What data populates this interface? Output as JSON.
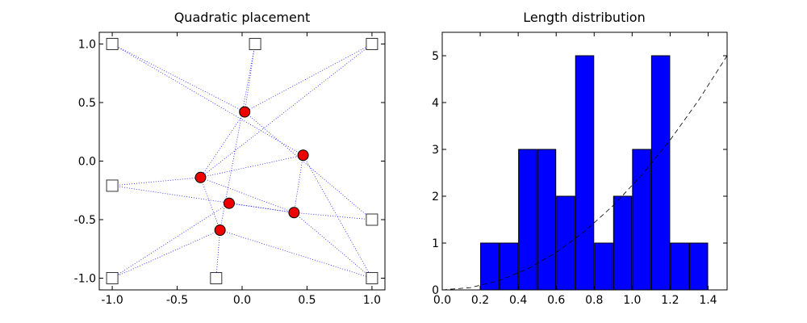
{
  "chart_data": [
    {
      "type": "scatter",
      "title": "Quadratic placement",
      "xlabel": "",
      "ylabel": "",
      "xlim": [
        -1.1,
        1.1
      ],
      "ylim": [
        -1.1,
        1.1
      ],
      "xticks": [
        "-1.0",
        "-0.5",
        "0.0",
        "0.5",
        "1.0"
      ],
      "yticks": [
        "-1.0",
        "-0.5",
        "0.0",
        "0.5",
        "1.0"
      ],
      "fixed_nodes": [
        [
          -1.0,
          1.0
        ],
        [
          0.1,
          1.0
        ],
        [
          1.0,
          1.0
        ],
        [
          -1.0,
          -0.21
        ],
        [
          1.0,
          -0.5
        ],
        [
          -1.0,
          -1.0
        ],
        [
          -0.2,
          -1.0
        ],
        [
          1.0,
          -1.0
        ]
      ],
      "movable_nodes": [
        [
          0.02,
          0.42
        ],
        [
          0.47,
          0.05
        ],
        [
          -0.32,
          -0.14
        ],
        [
          -0.1,
          -0.36
        ],
        [
          0.4,
          -0.44
        ],
        [
          -0.17,
          -0.59
        ]
      ],
      "edges": [
        [
          [
            -1.0,
            1.0
          ],
          [
            0.02,
            0.42
          ]
        ],
        [
          [
            -1.0,
            1.0
          ],
          [
            0.47,
            0.05
          ]
        ],
        [
          [
            0.1,
            1.0
          ],
          [
            0.02,
            0.42
          ]
        ],
        [
          [
            0.1,
            1.0
          ],
          [
            -0.17,
            -0.59
          ]
        ],
        [
          [
            1.0,
            1.0
          ],
          [
            0.02,
            0.42
          ]
        ],
        [
          [
            1.0,
            1.0
          ],
          [
            -0.32,
            -0.14
          ]
        ],
        [
          [
            0.02,
            0.42
          ],
          [
            -0.32,
            -0.14
          ]
        ],
        [
          [
            0.47,
            0.05
          ],
          [
            -0.32,
            -0.14
          ]
        ],
        [
          [
            0.47,
            0.05
          ],
          [
            0.4,
            -0.44
          ]
        ],
        [
          [
            0.47,
            0.05
          ],
          [
            1.0,
            -1.0
          ]
        ],
        [
          [
            -1.0,
            -0.21
          ],
          [
            -0.32,
            -0.14
          ]
        ],
        [
          [
            -1.0,
            -0.21
          ],
          [
            0.4,
            -0.44
          ]
        ],
        [
          [
            -0.32,
            -0.14
          ],
          [
            -0.17,
            -0.59
          ]
        ],
        [
          [
            -0.32,
            -0.14
          ],
          [
            0.4,
            -0.44
          ]
        ],
        [
          [
            -0.1,
            -0.36
          ],
          [
            0.4,
            -0.44
          ]
        ],
        [
          [
            -0.1,
            -0.36
          ],
          [
            -1.0,
            -1.0
          ]
        ],
        [
          [
            0.4,
            -0.44
          ],
          [
            1.0,
            -0.5
          ]
        ],
        [
          [
            0.4,
            -0.44
          ],
          [
            1.0,
            -1.0
          ]
        ],
        [
          [
            0.02,
            0.42
          ],
          [
            1.0,
            -0.5
          ]
        ],
        [
          [
            -0.17,
            -0.59
          ],
          [
            -1.0,
            -1.0
          ]
        ],
        [
          [
            -0.17,
            -0.59
          ],
          [
            -0.2,
            -1.0
          ]
        ],
        [
          [
            -0.17,
            -0.59
          ],
          [
            1.0,
            -1.0
          ]
        ]
      ],
      "fixed_color": "#ffffff",
      "movable_color": "#ee0000",
      "edge_color": "#2222ff"
    },
    {
      "type": "bar",
      "title": "Length distribution",
      "xlabel": "",
      "ylabel": "",
      "xlim": [
        0.0,
        1.5
      ],
      "ylim": [
        0,
        5.5
      ],
      "xticks": [
        "0.0",
        "0.2",
        "0.4",
        "0.6",
        "0.8",
        "1.0",
        "1.2",
        "1.4"
      ],
      "yticks": [
        "0",
        "1",
        "2",
        "3",
        "4",
        "5"
      ],
      "bin_width": 0.1,
      "bins": [
        0.2,
        0.3,
        0.4,
        0.5,
        0.6,
        0.7,
        0.8,
        0.9,
        1.0,
        1.1,
        1.2,
        1.3
      ],
      "values": [
        1,
        1,
        3,
        3,
        2,
        5,
        1,
        2,
        3,
        5,
        1,
        1
      ],
      "bar_color": "#0000ff",
      "curve": {
        "style": "dashed",
        "x": [
          0.0,
          0.15,
          0.3,
          0.45,
          0.6,
          0.75,
          0.9,
          1.05,
          1.2,
          1.35,
          1.5
        ],
        "y": [
          0.0,
          0.05,
          0.2,
          0.45,
          0.8,
          1.25,
          1.8,
          2.45,
          3.2,
          4.05,
          5.0
        ]
      }
    }
  ]
}
